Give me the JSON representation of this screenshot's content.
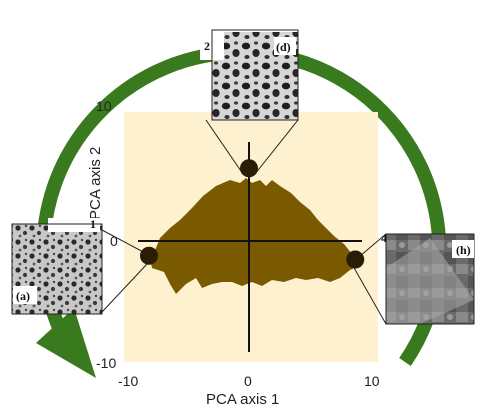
{
  "chart_data": {
    "type": "scatter",
    "xlabel": "PCA axis 1",
    "ylabel": "PCA axis 2",
    "xlim": [
      -10,
      10
    ],
    "ylim": [
      -10,
      10
    ],
    "x_ticks": [
      "-10",
      "0",
      "10"
    ],
    "y_ticks": [
      "10",
      "0",
      "-10"
    ],
    "grid": false,
    "points": [
      {
        "label": "(a)",
        "x": -8,
        "y": -1.5
      },
      {
        "label": "(d)",
        "x": 0,
        "y": 5.5
      },
      {
        "label": "(h)",
        "x": 8.5,
        "y": -1.8
      }
    ]
  },
  "fragments": {
    "left": "1",
    "top": "2",
    "right": "4"
  },
  "colors": {
    "background_panel": "#fdf1cf",
    "cloud": "#7a5a00",
    "arrow": "#3a7a1e",
    "point": "#2a1c05"
  }
}
